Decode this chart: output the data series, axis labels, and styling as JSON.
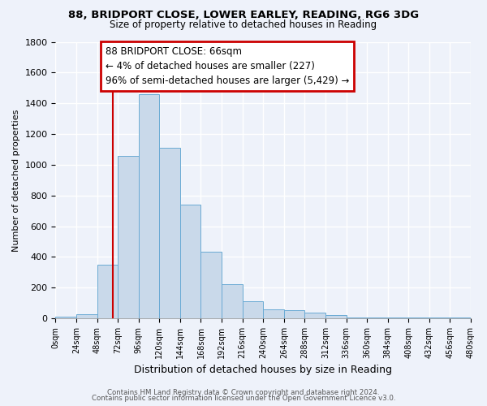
{
  "title": "88, BRIDPORT CLOSE, LOWER EARLEY, READING, RG6 3DG",
  "subtitle": "Size of property relative to detached houses in Reading",
  "xlabel": "Distribution of detached houses by size in Reading",
  "ylabel": "Number of detached properties",
  "bar_color": "#c9d9ea",
  "bar_edge_color": "#6aaad4",
  "background_color": "#eef2fa",
  "grid_color": "#ffffff",
  "bin_edges": [
    0,
    24,
    48,
    72,
    96,
    120,
    144,
    168,
    192,
    216,
    240,
    264,
    288,
    312,
    336,
    360,
    384,
    408,
    432,
    456,
    480
  ],
  "bar_heights": [
    10,
    30,
    350,
    1060,
    1460,
    1110,
    740,
    435,
    225,
    110,
    60,
    55,
    40,
    20,
    5,
    5,
    5,
    5,
    5,
    5
  ],
  "tick_labels": [
    "0sqm",
    "24sqm",
    "48sqm",
    "72sqm",
    "96sqm",
    "120sqm",
    "144sqm",
    "168sqm",
    "192sqm",
    "216sqm",
    "240sqm",
    "264sqm",
    "288sqm",
    "312sqm",
    "336sqm",
    "360sqm",
    "384sqm",
    "408sqm",
    "432sqm",
    "456sqm",
    "480sqm"
  ],
  "vline_x": 66,
  "vline_color": "#cc0000",
  "annotation_line1": "88 BRIDPORT CLOSE: 66sqm",
  "annotation_line2": "← 4% of detached houses are smaller (227)",
  "annotation_line3": "96% of semi-detached houses are larger (5,429) →",
  "annotation_box_color": "#ffffff",
  "annotation_box_edge": "#cc0000",
  "ylim": [
    0,
    1800
  ],
  "yticks": [
    0,
    200,
    400,
    600,
    800,
    1000,
    1200,
    1400,
    1600,
    1800
  ],
  "footer_line1": "Contains HM Land Registry data © Crown copyright and database right 2024.",
  "footer_line2": "Contains public sector information licensed under the Open Government Licence v3.0."
}
